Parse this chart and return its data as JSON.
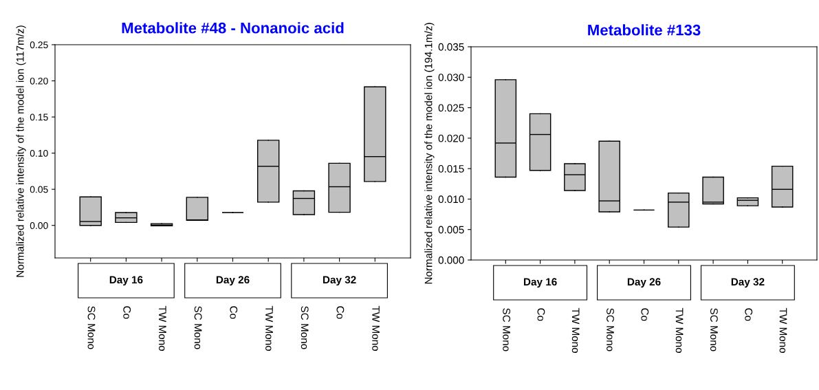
{
  "chart_data": [
    {
      "type": "box",
      "title": "Metabolite #48 - Nonanoic acid",
      "ylabel": "Normalized relative intensity of the model ion (117m/z)",
      "color": "#c0c0c0",
      "categories": [
        "SC Mono",
        "Co",
        "TW Mono",
        "SC Mono",
        "Co",
        "TW Mono",
        "SC Mono",
        "Co",
        "TW Mono"
      ],
      "annotations": [
        "Day 16",
        "Day 26",
        "Day 32"
      ],
      "boxes": [
        {
          "low": 0.0,
          "q1": 0.0,
          "median": 0.0054,
          "q3": 0.0395,
          "high": 0.0395
        },
        {
          "low": 0.0041,
          "q1": 0.0041,
          "median": 0.0105,
          "q3": 0.0178,
          "high": 0.0178
        },
        {
          "low": -0.0005,
          "q1": -0.0005,
          "median": 0.0005,
          "q3": 0.0025,
          "high": 0.0025
        },
        {
          "low": 0.007,
          "q1": 0.007,
          "median": 0.0076,
          "q3": 0.0389,
          "high": 0.0389
        },
        {
          "low": 0.0178,
          "q1": 0.0178,
          "median": 0.0178,
          "q3": 0.0178,
          "high": 0.0178
        },
        {
          "low": 0.0322,
          "q1": 0.0322,
          "median": 0.0818,
          "q3": 0.1178,
          "high": 0.1178
        },
        {
          "low": 0.015,
          "q1": 0.015,
          "median": 0.0373,
          "q3": 0.0478,
          "high": 0.0478
        },
        {
          "low": 0.0182,
          "q1": 0.0182,
          "median": 0.0535,
          "q3": 0.086,
          "high": 0.086
        },
        {
          "low": 0.0608,
          "q1": 0.0608,
          "median": 0.0952,
          "q3": 0.1917,
          "high": 0.1917
        }
      ],
      "ylim": [
        -0.045,
        0.25
      ],
      "yticks": [
        {
          "value": 0,
          "label": "0.00"
        },
        {
          "value": 0.05,
          "label": "0.05"
        },
        {
          "value": 0.1,
          "label": "0.10"
        },
        {
          "value": 0.15,
          "label": "0.15"
        },
        {
          "value": 0.2,
          "label": "0.20"
        },
        {
          "value": 0.25,
          "label": "0.25"
        }
      ]
    },
    {
      "type": "box",
      "title": "Metabolite #133",
      "ylabel": "Normalized relative intensity of the model ion (194.1m/z)",
      "color": "#c0c0c0",
      "categories": [
        "SC Mono",
        "Co",
        "TW Mono",
        "SC Mono",
        "Co",
        "TW Mono",
        "SC Mono",
        "Co",
        "TW Mono"
      ],
      "annotations": [
        "Day 16",
        "Day 26",
        "Day 32"
      ],
      "boxes": [
        {
          "low": 0.0136,
          "q1": 0.0136,
          "median": 0.0192,
          "q3": 0.0296,
          "high": 0.0296
        },
        {
          "low": 0.0147,
          "q1": 0.0147,
          "median": 0.0206,
          "q3": 0.024,
          "high": 0.024
        },
        {
          "low": 0.0114,
          "q1": 0.0114,
          "median": 0.014,
          "q3": 0.0158,
          "high": 0.0158
        },
        {
          "low": 0.0079,
          "q1": 0.0079,
          "median": 0.0097,
          "q3": 0.0195,
          "high": 0.0195
        },
        {
          "low": 0.0082,
          "q1": 0.0082,
          "median": 0.0082,
          "q3": 0.0082,
          "high": 0.0082
        },
        {
          "low": 0.0054,
          "q1": 0.0054,
          "median": 0.0095,
          "q3": 0.011,
          "high": 0.011
        },
        {
          "low": 0.0092,
          "q1": 0.0092,
          "median": 0.0095,
          "q3": 0.0136,
          "high": 0.0136
        },
        {
          "low": 0.0089,
          "q1": 0.0089,
          "median": 0.0098,
          "q3": 0.0102,
          "high": 0.0102
        },
        {
          "low": 0.0087,
          "q1": 0.0087,
          "median": 0.0116,
          "q3": 0.0154,
          "high": 0.0154
        }
      ],
      "ylim": [
        0,
        0.035
      ],
      "yticks": [
        {
          "value": 0,
          "label": "0.000"
        },
        {
          "value": 0.005,
          "label": "0.005"
        },
        {
          "value": 0.01,
          "label": "0.010"
        },
        {
          "value": 0.015,
          "label": "0.015"
        },
        {
          "value": 0.02,
          "label": "0.020"
        },
        {
          "value": 0.025,
          "label": "0.025"
        },
        {
          "value": 0.03,
          "label": "0.030"
        },
        {
          "value": 0.035,
          "label": "0.035"
        }
      ]
    }
  ]
}
